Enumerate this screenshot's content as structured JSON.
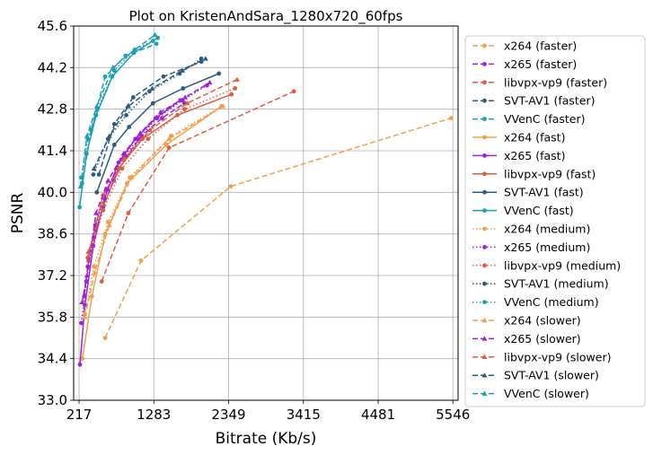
{
  "chart_data": {
    "type": "line",
    "title": "Plot on KristenAndSara_1280x720_60fps",
    "xlabel": "Bitrate (Kb/s)",
    "ylabel": "PSNR",
    "xlim": [
      140,
      5620
    ],
    "ylim": [
      33.0,
      45.6
    ],
    "xticks": [
      217,
      1283,
      2349,
      3415,
      4481,
      5546
    ],
    "yticks": [
      33.0,
      34.4,
      35.8,
      37.2,
      38.6,
      40.0,
      41.4,
      42.8,
      44.2,
      45.6
    ],
    "xtick_labels": [
      "217",
      "1283",
      "2349",
      "3415",
      "4481",
      "5546"
    ],
    "ytick_labels": [
      "33.0",
      "34.4",
      "35.8",
      "37.2",
      "38.6",
      "40.0",
      "41.4",
      "42.8",
      "44.2",
      "45.6"
    ],
    "grid": true,
    "legend_position": "outside-right",
    "series": [
      {
        "name": "x264 (faster)",
        "color": "#f0a04b",
        "dash": "dashed",
        "marker": "circle",
        "x": [
          590,
          1100,
          2380,
          5520
        ],
        "y": [
          35.1,
          37.7,
          40.2,
          42.5
        ]
      },
      {
        "name": "x265 (faster)",
        "color": "#a020d8",
        "dash": "dashed",
        "marker": "circle",
        "x": [
          290,
          340,
          430,
          560,
          710,
          890,
          1110,
          1400,
          1720
        ],
        "y": [
          36.5,
          37.5,
          38.5,
          39.5,
          40.4,
          41.2,
          41.9,
          42.5,
          43.0
        ]
      },
      {
        "name": "libvpx-vp9 (faster)",
        "color": "#e05c40",
        "dash": "dashed",
        "marker": "circle",
        "x": [
          540,
          920,
          1500,
          3280
        ],
        "y": [
          37.0,
          39.3,
          41.5,
          43.4
        ]
      },
      {
        "name": "SVT-AV1 (faster)",
        "color": "#2b5c80",
        "dash": "dashed",
        "marker": "circle",
        "x": [
          500,
          720,
          990,
          1420,
          1960
        ],
        "y": [
          40.6,
          42.3,
          43.2,
          43.9,
          44.4
        ]
      },
      {
        "name": "VVenC (faster)",
        "color": "#1aa0b0",
        "dash": "dashed",
        "marker": "circle",
        "x": [
          260,
          390,
          590,
          880,
          1320
        ],
        "y": [
          40.3,
          42.1,
          43.9,
          44.6,
          45.0
        ]
      },
      {
        "name": "x264 (fast)",
        "color": "#f0a04b",
        "dash": "solid",
        "marker": "circle",
        "x": [
          265,
          400,
          590,
          900,
          1460,
          2250
        ],
        "y": [
          34.4,
          36.5,
          38.6,
          40.3,
          41.6,
          42.9
        ]
      },
      {
        "name": "x265 (fast)",
        "color": "#a020d8",
        "dash": "solid",
        "marker": "circle",
        "x": [
          230,
          300,
          420,
          580,
          780,
          1020,
          1310,
          1660
        ],
        "y": [
          34.2,
          36.2,
          38.2,
          39.8,
          41.0,
          41.8,
          42.5,
          43.1
        ]
      },
      {
        "name": "libvpx-vp9 (fast)",
        "color": "#e05c40",
        "dash": "solid",
        "marker": "circle",
        "x": [
          340,
          560,
          780,
          1120,
          1620,
          2390
        ],
        "y": [
          37.8,
          39.9,
          40.8,
          41.8,
          42.6,
          43.3
        ]
      },
      {
        "name": "SVT-AV1 (fast)",
        "color": "#2b5c80",
        "dash": "solid",
        "marker": "circle",
        "x": [
          470,
          720,
          930,
          1270,
          1700,
          2210
        ],
        "y": [
          40.0,
          41.6,
          42.2,
          43.0,
          43.5,
          44.0
        ]
      },
      {
        "name": "VVenC (fast)",
        "color": "#1aa0b0",
        "dash": "solid",
        "marker": "circle",
        "x": [
          225,
          325,
          460,
          690,
          1000,
          1340
        ],
        "y": [
          39.5,
          41.3,
          42.6,
          43.9,
          44.7,
          45.2
        ]
      },
      {
        "name": "x264 (medium)",
        "color": "#f0a04b",
        "dash": "dotted",
        "marker": "circle",
        "x": [
          300,
          430,
          630,
          940,
          1530,
          2250
        ],
        "y": [
          35.9,
          37.5,
          39.0,
          40.5,
          41.9,
          42.9
        ]
      },
      {
        "name": "x265 (medium)",
        "color": "#a020d8",
        "dash": "dotted",
        "marker": "circle",
        "x": [
          250,
          320,
          450,
          620,
          820,
          1060,
          1330,
          1690,
          2040
        ],
        "y": [
          35.6,
          37.0,
          38.9,
          40.1,
          41.1,
          41.8,
          42.5,
          43.1,
          43.6
        ]
      },
      {
        "name": "libvpx-vp9 (medium)",
        "color": "#e05c40",
        "dash": "dotted",
        "marker": "circle",
        "x": [
          350,
          560,
          830,
          1200,
          1720,
          2440
        ],
        "y": [
          37.7,
          39.4,
          40.8,
          41.8,
          42.8,
          43.5
        ]
      },
      {
        "name": "SVT-AV1 (medium)",
        "color": "#2b5c80",
        "dash": "dotted",
        "marker": "circle",
        "x": [
          420,
          630,
          890,
          1220,
          1650,
          1960
        ],
        "y": [
          40.6,
          41.8,
          42.6,
          43.4,
          44.0,
          44.5
        ]
      },
      {
        "name": "VVenC (medium)",
        "color": "#1aa0b0",
        "dash": "dotted",
        "marker": "circle",
        "x": [
          250,
          340,
          480,
          720,
          1010,
          1270
        ],
        "y": [
          40.5,
          41.8,
          42.8,
          44.1,
          44.8,
          45.1
        ]
      },
      {
        "name": "x264 (slower)",
        "color": "#f0a04b",
        "dash": "dashed",
        "marker": "triangle",
        "x": [
          300,
          440,
          650,
          960,
          1500,
          2270
        ],
        "y": [
          35.8,
          37.3,
          38.9,
          40.5,
          41.8,
          42.9
        ]
      },
      {
        "name": "x265 (slower)",
        "color": "#a020d8",
        "dash": "dashed",
        "marker": "triangle",
        "x": [
          260,
          330,
          460,
          630,
          850,
          1090,
          1380,
          1730,
          2080
        ],
        "y": [
          36.3,
          37.2,
          39.3,
          40.4,
          41.3,
          42.0,
          42.7,
          43.2,
          43.7
        ]
      },
      {
        "name": "libvpx-vp9 (slower)",
        "color": "#e05c40",
        "dash": "dashed",
        "marker": "triangle",
        "x": [
          350,
          570,
          850,
          1230,
          1760,
          2470
        ],
        "y": [
          38.0,
          39.6,
          41.1,
          42.1,
          43.0,
          43.8
        ]
      },
      {
        "name": "SVT-AV1 (slower)",
        "color": "#2b5c80",
        "dash": "dashed",
        "marker": "triangle",
        "x": [
          430,
          650,
          920,
          1260,
          1690,
          2020
        ],
        "y": [
          40.8,
          41.9,
          42.9,
          43.5,
          44.1,
          44.5
        ]
      },
      {
        "name": "VVenC (slower)",
        "color": "#1aa0b0",
        "dash": "dashed",
        "marker": "triangle",
        "x": [
          240,
          330,
          470,
          700,
          1010,
          1300
        ],
        "y": [
          40.2,
          41.9,
          42.9,
          44.2,
          44.8,
          45.3
        ]
      }
    ]
  }
}
